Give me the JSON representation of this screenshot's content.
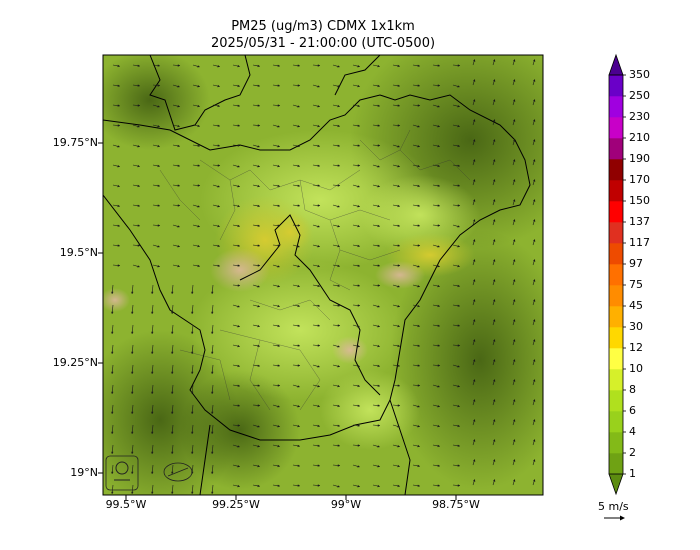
{
  "title_line1": "PM25 (ug/m3) CDMX 1x1km",
  "title_line2": "2025/05/31 - 21:00:00 (UTC-0500)",
  "lat_labels": [
    "19.75°N",
    "19.5°N",
    "19.25°N",
    "19°N"
  ],
  "lon_labels": [
    "99.5°W",
    "99.25°W",
    "99°W",
    "98.75°W"
  ],
  "colorbar": {
    "labels": [
      "1",
      "2",
      "4",
      "6",
      "8",
      "10",
      "12",
      "30",
      "45",
      "75",
      "97",
      "117",
      "137",
      "150",
      "170",
      "190",
      "210",
      "230",
      "250",
      "350"
    ],
    "colors": [
      "#5c8c10",
      "#6fa214",
      "#83ba18",
      "#99d11c",
      "#b0e01e",
      "#d6f02a",
      "#ffff44",
      "#ffd800",
      "#ffb000",
      "#ff8c00",
      "#ff7000",
      "#ee4b00",
      "#e03020",
      "#ff0000",
      "#c00000",
      "#900000",
      "#a0007a",
      "#c800c8",
      "#a000e0",
      "#6a00c8",
      "#4b0090"
    ]
  },
  "wind_legend": {
    "label": "5 m/s"
  }
}
